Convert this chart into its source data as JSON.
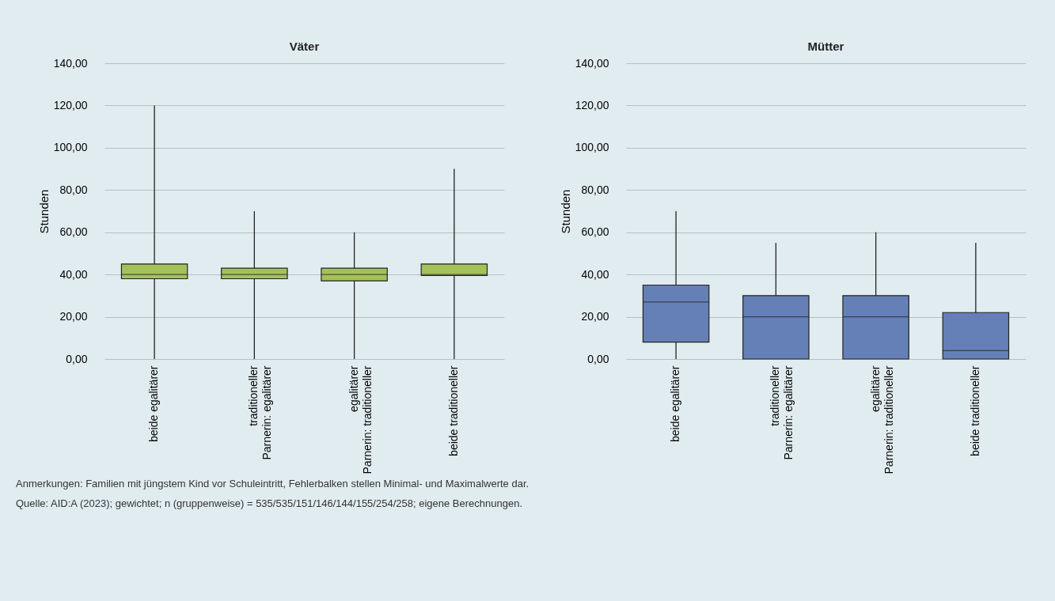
{
  "chart_data": [
    {
      "type": "box",
      "title": "Väter",
      "ylabel": "Stunden",
      "categories": [
        "beide egalitärer",
        "traditioneller\nParnerin: egalitärer",
        "egalitärer\nParnerin: traditioneller",
        "beide traditioneller"
      ],
      "series": [
        {
          "color": "#a5c25a",
          "boxes": [
            {
              "low": 0,
              "q1": 38,
              "median": 40,
              "q3": 45,
              "high": 120
            },
            {
              "low": 0,
              "q1": 38,
              "median": 40,
              "q3": 43,
              "high": 70
            },
            {
              "low": 0,
              "q1": 37,
              "median": 40,
              "q3": 43,
              "high": 60
            },
            {
              "low": 0,
              "q1": 39.5,
              "median": 40,
              "q3": 45,
              "high": 90
            }
          ]
        }
      ],
      "ylim": [
        0,
        140
      ],
      "yticks": [
        {
          "value": 0,
          "label": "0,00"
        },
        {
          "value": 20,
          "label": "20,00"
        },
        {
          "value": 40,
          "label": "40,00"
        },
        {
          "value": 60,
          "label": "60,00"
        },
        {
          "value": 80,
          "label": "80,00"
        },
        {
          "value": 100,
          "label": "100,00"
        },
        {
          "value": 120,
          "label": "120,00"
        },
        {
          "value": 140,
          "label": "140,00"
        }
      ],
      "grid": "y"
    },
    {
      "type": "box",
      "title": "Mütter",
      "ylabel": "Stunden",
      "categories": [
        "beide egalitärer",
        "traditioneller\nParnerin: egalitärer",
        "egalitärer\nParnerin: traditioneller",
        "beide traditioneller"
      ],
      "series": [
        {
          "color": "#6580b6",
          "boxes": [
            {
              "low": 0,
              "q1": 8,
              "median": 27,
              "q3": 35,
              "high": 70
            },
            {
              "low": 0,
              "q1": 0,
              "median": 20,
              "q3": 30,
              "high": 55
            },
            {
              "low": 0,
              "q1": 0,
              "median": 20,
              "q3": 30,
              "high": 60
            },
            {
              "low": 0,
              "q1": 0,
              "median": 4,
              "q3": 22,
              "high": 55
            }
          ]
        }
      ],
      "ylim": [
        0,
        140
      ],
      "yticks": [
        {
          "value": 0,
          "label": "0,00"
        },
        {
          "value": 20,
          "label": "20,00"
        },
        {
          "value": 40,
          "label": "40,00"
        },
        {
          "value": 60,
          "label": "60,00"
        },
        {
          "value": 80,
          "label": "80,00"
        },
        {
          "value": 100,
          "label": "100,00"
        },
        {
          "value": 120,
          "label": "120,00"
        },
        {
          "value": 140,
          "label": "140,00"
        }
      ],
      "grid": "y",
      "annotations": [
        "Anmerkungen: Familien mit jüngstem Kind vor Schuleintritt, Fehlerbalken stellen Minimal- und Maximalwerte dar.",
        "Quelle: AID:A (2023); gewichtet; n (gruppenweise) = 535/535/151/146/144/155/254/258; eigene Berechnungen."
      ]
    }
  ]
}
